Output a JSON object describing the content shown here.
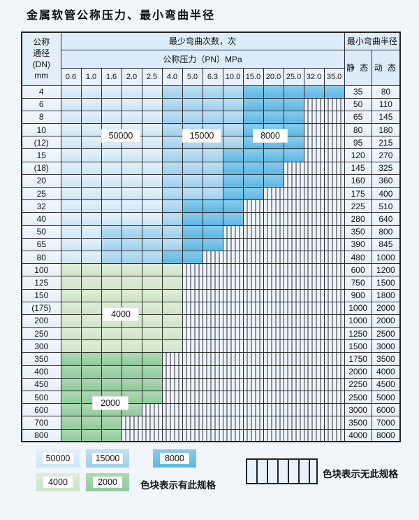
{
  "title": "金属软管公称压力、最小弯曲半径",
  "table": {
    "dn_header_lines": [
      "公称",
      "通径",
      "(DN)",
      "mm"
    ],
    "bend_times_header": "最少弯曲次数，次",
    "pn_header": "公称压力（PN）MPa",
    "radius_header": "最小弯曲半径",
    "static_header": "静 态",
    "dynamic_header": "动 态",
    "pressures": [
      "0.6",
      "1.0",
      "1.6",
      "2.0",
      "2.5",
      "4.0",
      "5.0",
      "6.3",
      "10.0",
      "15.0",
      "20.0",
      "25.0",
      "32.0",
      "35.0"
    ],
    "zone_meaning": {
      "b1": "50000",
      "b2": "15000",
      "b3": "8000",
      "g1": "4000",
      "g2": "2000",
      "h": "无此规格"
    },
    "rows": [
      {
        "dn": "4",
        "cells": [
          "b1",
          "b1",
          "b1",
          "b1",
          "b1",
          "b2",
          "b2",
          "b2",
          "b2",
          "b3",
          "b3",
          "b3",
          "b3",
          "b3"
        ],
        "static": "35",
        "dynamic": "80"
      },
      {
        "dn": "6",
        "cells": [
          "b1",
          "b1",
          "b1",
          "b1",
          "b1",
          "b2",
          "b2",
          "b2",
          "b2",
          "b3",
          "b3",
          "b3",
          "h",
          "h"
        ],
        "static": "50",
        "dynamic": "110"
      },
      {
        "dn": "8",
        "cells": [
          "b1",
          "b1",
          "b1",
          "b1",
          "b1",
          "b2",
          "b2",
          "b2",
          "b2",
          "b3",
          "b3",
          "b3",
          "h",
          "h"
        ],
        "static": "65",
        "dynamic": "145"
      },
      {
        "dn": "10",
        "cells": [
          "b1",
          "b1",
          "b1",
          "b1",
          "b1",
          "b2",
          "b2",
          "b2",
          "b2",
          "b3",
          "b3",
          "b3",
          "h",
          "h"
        ],
        "static": "80",
        "dynamic": "180"
      },
      {
        "dn": "(12)",
        "cells": [
          "b1",
          "b1",
          "b1",
          "b1",
          "b1",
          "b2",
          "b2",
          "b2",
          "b2",
          "b3",
          "b3",
          "b3",
          "h",
          "h"
        ],
        "static": "95",
        "dynamic": "215"
      },
      {
        "dn": "15",
        "cells": [
          "b1",
          "b1",
          "b1",
          "b1",
          "b1",
          "b2",
          "b2",
          "b2",
          "b3",
          "b3",
          "b3",
          "b3",
          "h",
          "h"
        ],
        "static": "120",
        "dynamic": "270"
      },
      {
        "dn": "(18)",
        "cells": [
          "b1",
          "b1",
          "b1",
          "b1",
          "b1",
          "b2",
          "b2",
          "b2",
          "b3",
          "b3",
          "b3",
          "h",
          "h",
          "h"
        ],
        "static": "145",
        "dynamic": "325"
      },
      {
        "dn": "20",
        "cells": [
          "b1",
          "b1",
          "b1",
          "b1",
          "b1",
          "b2",
          "b2",
          "b2",
          "b3",
          "b3",
          "b3",
          "h",
          "h",
          "h"
        ],
        "static": "160",
        "dynamic": "360"
      },
      {
        "dn": "25",
        "cells": [
          "b1",
          "b1",
          "b1",
          "b1",
          "b1",
          "b2",
          "b2",
          "b2",
          "b3",
          "b3",
          "h",
          "h",
          "h",
          "h"
        ],
        "static": "175",
        "dynamic": "400"
      },
      {
        "dn": "32",
        "cells": [
          "b1",
          "b1",
          "b1",
          "b1",
          "b1",
          "b2",
          "b3",
          "b3",
          "b3",
          "h",
          "h",
          "h",
          "h",
          "h"
        ],
        "static": "225",
        "dynamic": "510"
      },
      {
        "dn": "40",
        "cells": [
          "b1",
          "b1",
          "b1",
          "b1",
          "b1",
          "b2",
          "b3",
          "b3",
          "b3",
          "h",
          "h",
          "h",
          "h",
          "h"
        ],
        "static": "280",
        "dynamic": "640"
      },
      {
        "dn": "50",
        "cells": [
          "b1",
          "b1",
          "b2",
          "b2",
          "b2",
          "b2",
          "b3",
          "b3",
          "h",
          "h",
          "h",
          "h",
          "h",
          "h"
        ],
        "static": "350",
        "dynamic": "800"
      },
      {
        "dn": "65",
        "cells": [
          "b1",
          "b1",
          "b2",
          "b2",
          "b2",
          "b2",
          "b3",
          "b3",
          "h",
          "h",
          "h",
          "h",
          "h",
          "h"
        ],
        "static": "390",
        "dynamic": "845"
      },
      {
        "dn": "80",
        "cells": [
          "b1",
          "b1",
          "b2",
          "b2",
          "b2",
          "b3",
          "b3",
          "h",
          "h",
          "h",
          "h",
          "h",
          "h",
          "h"
        ],
        "static": "480",
        "dynamic": "1000"
      },
      {
        "dn": "100",
        "cells": [
          "g1",
          "g1",
          "g1",
          "g1",
          "g1",
          "g1",
          "h",
          "h",
          "h",
          "h",
          "h",
          "h",
          "h",
          "h"
        ],
        "static": "600",
        "dynamic": "1200"
      },
      {
        "dn": "125",
        "cells": [
          "g1",
          "g1",
          "g1",
          "g1",
          "g1",
          "g1",
          "h",
          "h",
          "h",
          "h",
          "h",
          "h",
          "h",
          "h"
        ],
        "static": "750",
        "dynamic": "1500"
      },
      {
        "dn": "150",
        "cells": [
          "g1",
          "g1",
          "g1",
          "g1",
          "g1",
          "g1",
          "h",
          "h",
          "h",
          "h",
          "h",
          "h",
          "h",
          "h"
        ],
        "static": "900",
        "dynamic": "1800"
      },
      {
        "dn": "(175)",
        "cells": [
          "g1",
          "g1",
          "g1",
          "g1",
          "g1",
          "g1",
          "h",
          "h",
          "h",
          "h",
          "h",
          "h",
          "h",
          "h"
        ],
        "static": "1000",
        "dynamic": "2000"
      },
      {
        "dn": "200",
        "cells": [
          "g1",
          "g1",
          "g1",
          "g1",
          "g1",
          "g1",
          "h",
          "h",
          "h",
          "h",
          "h",
          "h",
          "h",
          "h"
        ],
        "static": "1000",
        "dynamic": "2000"
      },
      {
        "dn": "250",
        "cells": [
          "g1",
          "g1",
          "g1",
          "g1",
          "g1",
          "g1",
          "h",
          "h",
          "h",
          "h",
          "h",
          "h",
          "h",
          "h"
        ],
        "static": "1250",
        "dynamic": "2500"
      },
      {
        "dn": "300",
        "cells": [
          "g1",
          "g1",
          "g1",
          "g1",
          "g1",
          "g1",
          "h",
          "h",
          "h",
          "h",
          "h",
          "h",
          "h",
          "h"
        ],
        "static": "1500",
        "dynamic": "3000"
      },
      {
        "dn": "350",
        "cells": [
          "g2",
          "g2",
          "g2",
          "g2",
          "g2",
          "h",
          "h",
          "h",
          "h",
          "h",
          "h",
          "h",
          "h",
          "h"
        ],
        "static": "1750",
        "dynamic": "3500"
      },
      {
        "dn": "400",
        "cells": [
          "g2",
          "g2",
          "g2",
          "g2",
          "g2",
          "h",
          "h",
          "h",
          "h",
          "h",
          "h",
          "h",
          "h",
          "h"
        ],
        "static": "2000",
        "dynamic": "4000"
      },
      {
        "dn": "450",
        "cells": [
          "g2",
          "g2",
          "g2",
          "g2",
          "g2",
          "h",
          "h",
          "h",
          "h",
          "h",
          "h",
          "h",
          "h",
          "h"
        ],
        "static": "2250",
        "dynamic": "4500"
      },
      {
        "dn": "500",
        "cells": [
          "g2",
          "g2",
          "g2",
          "g2",
          "g2",
          "h",
          "h",
          "h",
          "h",
          "h",
          "h",
          "h",
          "h",
          "h"
        ],
        "static": "2500",
        "dynamic": "5000"
      },
      {
        "dn": "600",
        "cells": [
          "g2",
          "g2",
          "g2",
          "g2",
          "h",
          "h",
          "h",
          "h",
          "h",
          "h",
          "h",
          "h",
          "h",
          "h"
        ],
        "static": "3000",
        "dynamic": "6000"
      },
      {
        "dn": "700",
        "cells": [
          "g2",
          "g2",
          "g2",
          "h",
          "h",
          "h",
          "h",
          "h",
          "h",
          "h",
          "h",
          "h",
          "h",
          "h"
        ],
        "static": "3500",
        "dynamic": "7000"
      },
      {
        "dn": "800",
        "cells": [
          "g2",
          "g2",
          "g2",
          "h",
          "h",
          "h",
          "h",
          "h",
          "h",
          "h",
          "h",
          "h",
          "h",
          "h"
        ],
        "static": "4000",
        "dynamic": "8000"
      }
    ]
  },
  "overlay_labels": {
    "blue_50000": "50000",
    "blue_15000": "15000",
    "blue_8000": "8000",
    "green_4000": "4000",
    "green_2000": "2000"
  },
  "legend": {
    "items": [
      {
        "label": "50000",
        "zone": "b1"
      },
      {
        "label": "15000",
        "zone": "b2"
      },
      {
        "label": "8000",
        "zone": "b3"
      },
      {
        "label": "4000",
        "zone": "g1"
      },
      {
        "label": "2000",
        "zone": "g2"
      }
    ],
    "has_spec_text": "色块表示有此规格",
    "no_spec_text": "色块表示无此规格"
  },
  "colors": {
    "blue_50000": "#d8eaf7",
    "blue_15000": "#abd7f0",
    "blue_8000": "#6fc0e8",
    "green_4000": "#d8e9d1",
    "green_2000": "#9cd0a4",
    "hatch_bg": "#edf4fb",
    "grid_line": "#2d2d2d",
    "page_bg": "#f1f6fa"
  }
}
